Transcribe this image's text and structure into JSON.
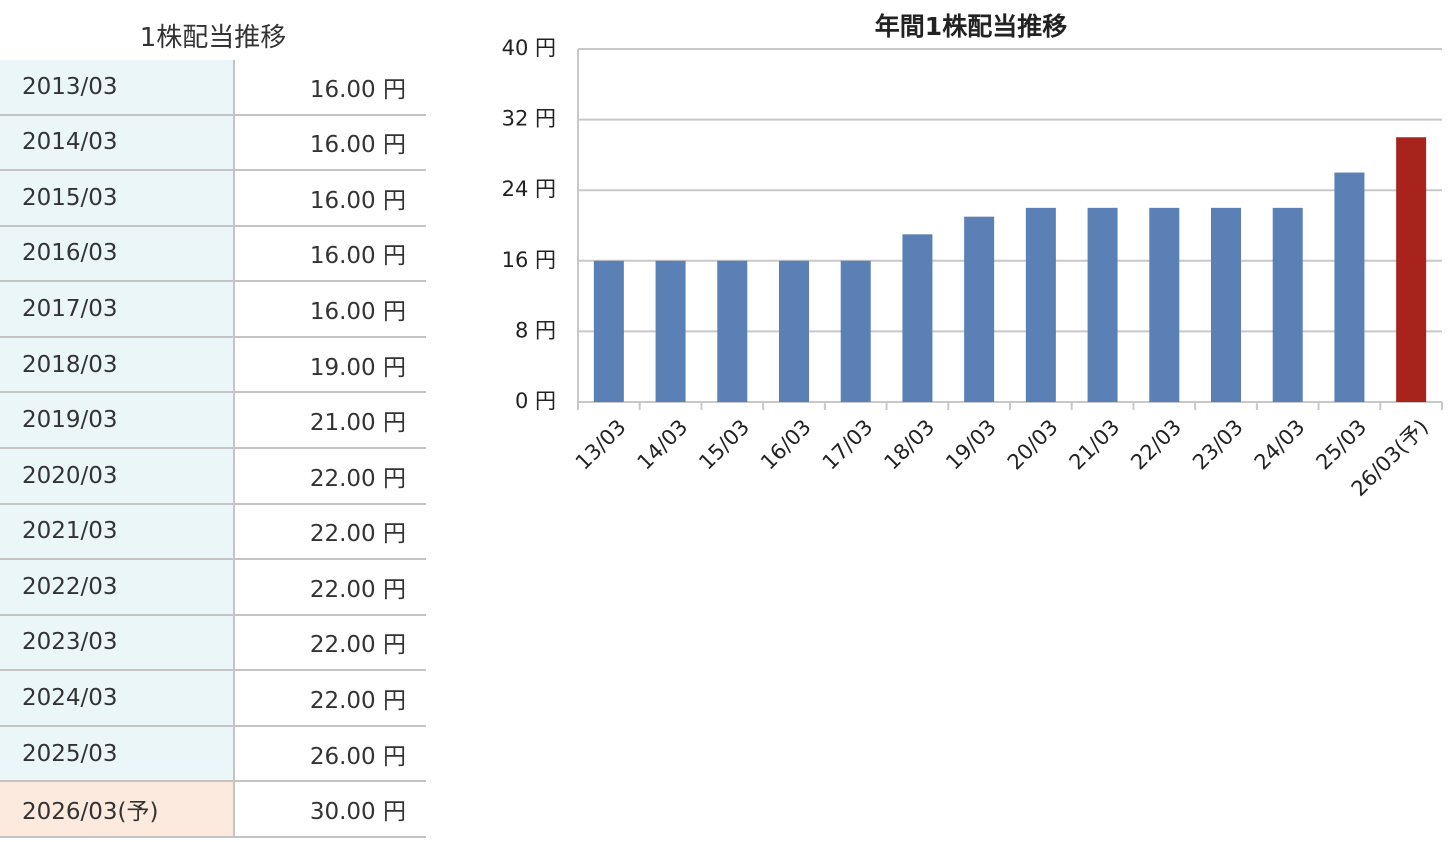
{
  "table": {
    "title": "1株配当推移",
    "rows": [
      [
        "2013/03",
        "16.00 円"
      ],
      [
        "2014/03",
        "16.00 円"
      ],
      [
        "2015/03",
        "16.00 円"
      ],
      [
        "2016/03",
        "16.00 円"
      ],
      [
        "2017/03",
        "16.00 円"
      ],
      [
        "2018/03",
        "19.00 円"
      ],
      [
        "2019/03",
        "21.00 円"
      ],
      [
        "2020/03",
        "22.00 円"
      ],
      [
        "2021/03",
        "22.00 円"
      ],
      [
        "2022/03",
        "22.00 円"
      ],
      [
        "2023/03",
        "22.00 円"
      ],
      [
        "2024/03",
        "22.00 円"
      ],
      [
        "2025/03",
        "26.00 円"
      ],
      [
        "2026/03(予)",
        "30.00 円"
      ]
    ]
  },
  "chart_data": {
    "type": "bar",
    "title": "年間1株配当推移",
    "categories": [
      "13/03",
      "14/03",
      "15/03",
      "16/03",
      "17/03",
      "18/03",
      "19/03",
      "20/03",
      "21/03",
      "22/03",
      "23/03",
      "24/03",
      "25/03",
      "26/03(予)"
    ],
    "values": [
      16,
      16,
      16,
      16,
      16,
      19,
      21,
      22,
      22,
      22,
      22,
      22,
      26,
      30
    ],
    "colors": [
      "#5a80b6",
      "#5a80b6",
      "#5a80b6",
      "#5a80b6",
      "#5a80b6",
      "#5a80b6",
      "#5a80b6",
      "#5a80b6",
      "#5a80b6",
      "#5a80b6",
      "#5a80b6",
      "#5a80b6",
      "#5a80b6",
      "#a8231b"
    ],
    "ylim": [
      0,
      40
    ],
    "yticks": [
      {
        "value": 0,
        "label": "0 円"
      },
      {
        "value": 8,
        "label": "8 円"
      },
      {
        "value": 16,
        "label": "16 円"
      },
      {
        "value": 24,
        "label": "24 円"
      },
      {
        "value": 32,
        "label": "32 円"
      },
      {
        "value": 40,
        "label": "40 円"
      }
    ],
    "grid": true
  }
}
